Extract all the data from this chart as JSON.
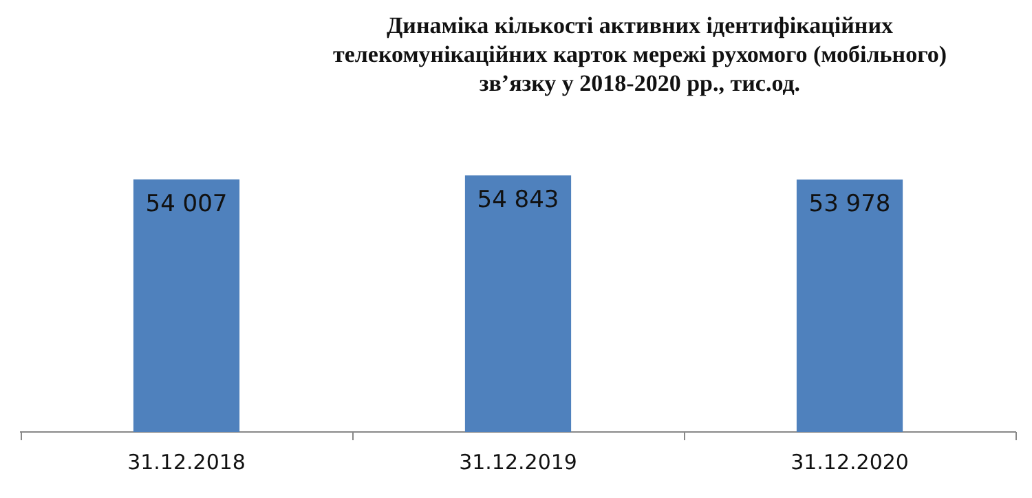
{
  "chart_data": {
    "type": "bar",
    "title": "Динаміка кількості активних ідентифікаційних телекомунікаційних карток мережі рухомого (мобільного) зв’язку у 2018-2020 рр., тис.од.",
    "categories": [
      "31.12.2018",
      "31.12.2019",
      "31.12.2020"
    ],
    "values": [
      54007,
      54843,
      53978
    ],
    "value_labels": [
      "54 007",
      "54 843",
      "53 978"
    ],
    "color": "#4f81bd",
    "grid": false,
    "legend": false
  }
}
